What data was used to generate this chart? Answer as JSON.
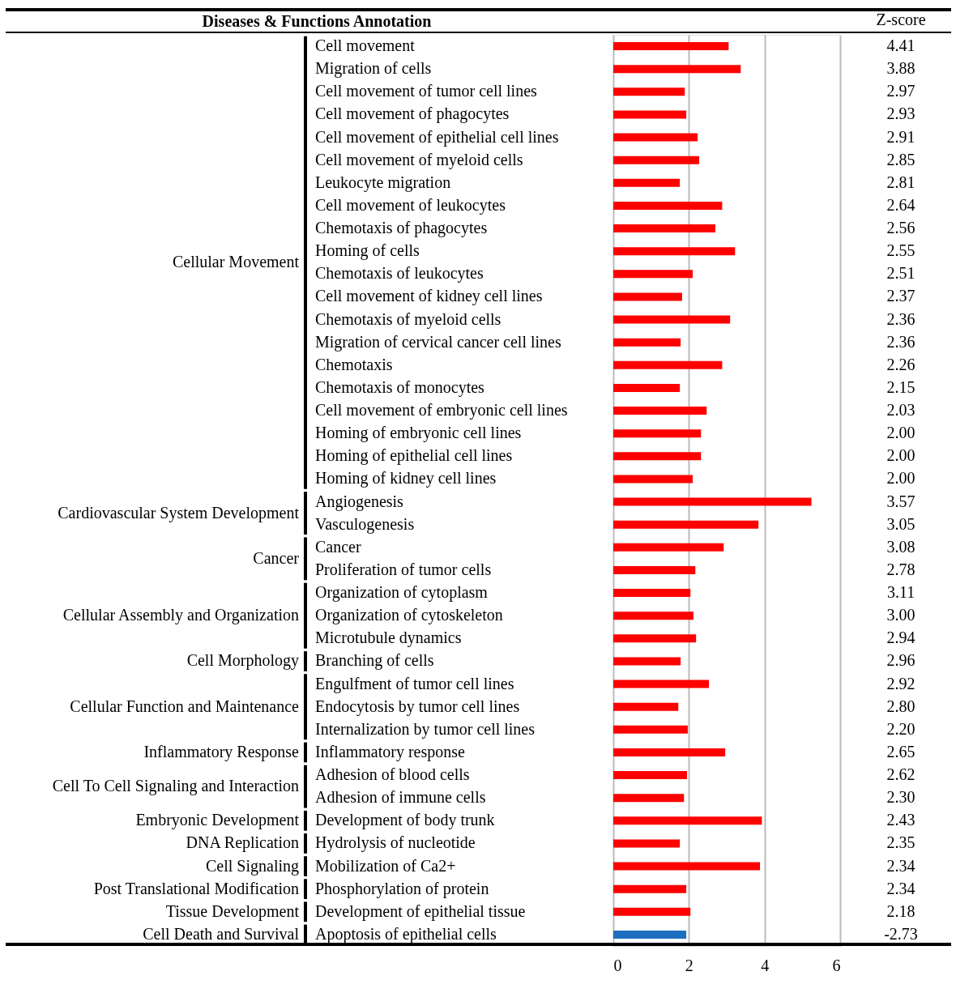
{
  "chart_data": {
    "type": "bar",
    "orientation": "horizontal",
    "title": "Diseases & Functions Annotation",
    "categories": [
      "Cell movement",
      "Migration of cells",
      "Cell movement of tumor cell lines",
      "Cell movement of phagocytes",
      "Cell movement of epithelial cell lines",
      "Cell movement of myeloid cells",
      "Leukocyte migration",
      "Cell movement of leukocytes",
      "Chemotaxis of phagocytes",
      "Homing of cells",
      "Chemotaxis of leukocytes",
      "Cell movement of kidney cell lines",
      "Chemotaxis of myeloid cells",
      "Migration of cervical cancer cell lines",
      "Chemotaxis",
      "Chemotaxis of monocytes",
      "Cell movement of embryonic cell lines",
      "Homing of embryonic cell lines",
      "Homing of epithelial cell lines",
      "Homing of kidney cell lines",
      "Angiogenesis",
      "Vasculogenesis",
      "Cancer",
      "Proliferation of tumor cells",
      "Organization of cytoplasm",
      "Organization of cytoskeleton",
      "Microtubule dynamics",
      "Branching of cells",
      "Engulfment of tumor cell lines",
      "Endocytosis by tumor cell lines",
      "Internalization by tumor cell lines",
      "Inflammatory response",
      "Adhesion of blood cells",
      "Adhesion of immune cells",
      "Development of body trunk",
      "Hydrolysis of nucleotide",
      "Mobilization of Ca2+",
      "Phosphorylation of protein",
      "Development of epithelial tissue",
      "Apoptosis of epithelial cells"
    ],
    "series": [
      {
        "color": "#ff0000",
        "values": [
          3.05,
          3.37,
          1.89,
          1.93,
          2.23,
          2.27,
          1.76,
          2.88,
          2.7,
          3.22,
          2.1,
          1.82,
          3.09,
          1.78,
          2.88,
          1.76,
          2.47,
          2.32,
          2.32,
          2.1,
          null,
          null,
          null,
          null,
          null,
          null,
          null,
          null,
          null,
          null,
          null,
          null,
          null,
          null,
          null,
          null,
          null,
          null,
          null,
          null
        ]
      },
      {
        "color": "#ff0000",
        "values": [
          null,
          null,
          null,
          null,
          null,
          null,
          null,
          null,
          null,
          null,
          null,
          null,
          null,
          null,
          null,
          null,
          null,
          null,
          null,
          null,
          5.24,
          3.84,
          null,
          null,
          null,
          null,
          null,
          null,
          null,
          null,
          null,
          null,
          null,
          null,
          null,
          null,
          null,
          null,
          null,
          null
        ]
      },
      {
        "color": "#ff0000",
        "values": [
          null,
          null,
          null,
          null,
          null,
          null,
          null,
          null,
          null,
          null,
          null,
          null,
          null,
          null,
          null,
          null,
          null,
          null,
          null,
          null,
          null,
          null,
          2.92,
          2.17,
          null,
          null,
          null,
          null,
          null,
          null,
          null,
          null,
          null,
          null,
          null,
          null,
          null,
          null,
          null,
          null
        ]
      },
      {
        "color": "#ff0000",
        "values": [
          null,
          null,
          null,
          null,
          null,
          null,
          null,
          null,
          null,
          null,
          null,
          null,
          null,
          null,
          null,
          null,
          null,
          null,
          null,
          null,
          null,
          null,
          null,
          null,
          2.04,
          2.12,
          2.19,
          null,
          null,
          null,
          null,
          null,
          null,
          null,
          null,
          null,
          null,
          null,
          null,
          null
        ]
      },
      {
        "color": "#ff0000",
        "values": [
          null,
          null,
          null,
          null,
          null,
          null,
          null,
          null,
          null,
          null,
          null,
          null,
          null,
          null,
          null,
          null,
          null,
          null,
          null,
          null,
          null,
          null,
          null,
          null,
          null,
          null,
          null,
          1.78,
          null,
          null,
          null,
          null,
          null,
          null,
          null,
          null,
          null,
          null,
          null,
          null
        ]
      },
      {
        "color": "#ff0000",
        "values": [
          null,
          null,
          null,
          null,
          null,
          null,
          null,
          null,
          null,
          null,
          null,
          null,
          null,
          null,
          null,
          null,
          null,
          null,
          null,
          null,
          null,
          null,
          null,
          null,
          null,
          null,
          null,
          null,
          2.53,
          1.72,
          1.97,
          null,
          null,
          null,
          null,
          null,
          null,
          null,
          null,
          null
        ]
      },
      {
        "color": "#ff0000",
        "values": [
          null,
          null,
          null,
          null,
          null,
          null,
          null,
          null,
          null,
          null,
          null,
          null,
          null,
          null,
          null,
          null,
          null,
          null,
          null,
          null,
          null,
          null,
          null,
          null,
          null,
          null,
          null,
          null,
          null,
          null,
          null,
          2.96,
          null,
          null,
          null,
          null,
          null,
          null,
          null,
          null
        ]
      },
      {
        "color": "#ff0000",
        "values": [
          null,
          null,
          null,
          null,
          null,
          null,
          null,
          null,
          null,
          null,
          null,
          null,
          null,
          null,
          null,
          null,
          null,
          null,
          null,
          null,
          null,
          null,
          null,
          null,
          null,
          null,
          null,
          null,
          null,
          null,
          null,
          null,
          1.95,
          1.87,
          null,
          null,
          null,
          null,
          null,
          null
        ]
      },
      {
        "color": "#ff0000",
        "values": [
          null,
          null,
          null,
          null,
          null,
          null,
          null,
          null,
          null,
          null,
          null,
          null,
          null,
          null,
          null,
          null,
          null,
          null,
          null,
          null,
          null,
          null,
          null,
          null,
          null,
          null,
          null,
          null,
          null,
          null,
          null,
          null,
          null,
          null,
          3.93,
          null,
          null,
          null,
          null,
          null
        ]
      },
      {
        "color": "#ff0000",
        "values": [
          null,
          null,
          null,
          null,
          null,
          null,
          null,
          null,
          null,
          null,
          null,
          null,
          null,
          null,
          null,
          null,
          null,
          null,
          null,
          null,
          null,
          null,
          null,
          null,
          null,
          null,
          null,
          null,
          null,
          null,
          null,
          null,
          null,
          null,
          null,
          1.76,
          null,
          null,
          null,
          null
        ]
      },
      {
        "color": "#ff0000",
        "values": [
          null,
          null,
          null,
          null,
          null,
          null,
          null,
          null,
          null,
          null,
          null,
          null,
          null,
          null,
          null,
          null,
          null,
          null,
          null,
          null,
          null,
          null,
          null,
          null,
          null,
          null,
          null,
          null,
          null,
          null,
          null,
          null,
          null,
          null,
          null,
          null,
          3.88,
          null,
          null,
          null
        ]
      },
      {
        "color": "#ff0000",
        "values": [
          null,
          null,
          null,
          null,
          null,
          null,
          null,
          null,
          null,
          null,
          null,
          null,
          null,
          null,
          null,
          null,
          null,
          null,
          null,
          null,
          null,
          null,
          null,
          null,
          null,
          null,
          null,
          null,
          null,
          null,
          null,
          null,
          null,
          null,
          null,
          null,
          null,
          1.93,
          null,
          null
        ]
      },
      {
        "color": "#ff0000",
        "values": [
          null,
          null,
          null,
          null,
          null,
          null,
          null,
          null,
          null,
          null,
          null,
          null,
          null,
          null,
          null,
          null,
          null,
          null,
          null,
          null,
          null,
          null,
          null,
          null,
          null,
          null,
          null,
          null,
          null,
          null,
          null,
          null,
          null,
          null,
          null,
          null,
          null,
          null,
          2.04,
          null
        ]
      },
      {
        "color": "#1f6fc0",
        "values": [
          null,
          null,
          null,
          null,
          null,
          null,
          null,
          null,
          null,
          null,
          null,
          null,
          null,
          null,
          null,
          null,
          null,
          null,
          null,
          null,
          null,
          null,
          null,
          null,
          null,
          null,
          null,
          null,
          null,
          null,
          null,
          null,
          null,
          null,
          null,
          null,
          null,
          null,
          null,
          1.93
        ]
      }
    ],
    "xlim": [
      0,
      6
    ],
    "xticks": [
      0,
      2,
      4,
      6
    ],
    "grid": "x",
    "legend": false,
    "annotations": [
      "Z-score",
      "4.41",
      "3.88",
      "2.97",
      "2.93",
      "2.91",
      "2.85",
      "2.81",
      "2.64",
      "2.56",
      "2.55",
      "2.51",
      "2.37",
      "2.36",
      "2.36",
      "2.26",
      "2.15",
      "2.03",
      "2.00",
      "2.00",
      "2.00",
      "3.57",
      "3.05",
      "3.08",
      "2.78",
      "3.11",
      "3.00",
      "2.94",
      "2.96",
      "2.92",
      "2.80",
      "2.20",
      "2.65",
      "2.62",
      "2.30",
      "2.43",
      "2.35",
      "2.34",
      "2.34",
      "2.18",
      "-2.73",
      "Cellular Movement",
      "Cardiovascular System Development",
      "Cancer",
      "Cellular Assembly and Organization",
      "Cell Morphology",
      "Cellular Function and Maintenance",
      "Inflammatory Response",
      "Cell To Cell Signaling and Interaction",
      "Embryonic Development",
      "DNA Replication",
      "Cell Signaling",
      "Post Translational Modification",
      "Tissue Development",
      "Cell Death and Survival"
    ]
  }
}
